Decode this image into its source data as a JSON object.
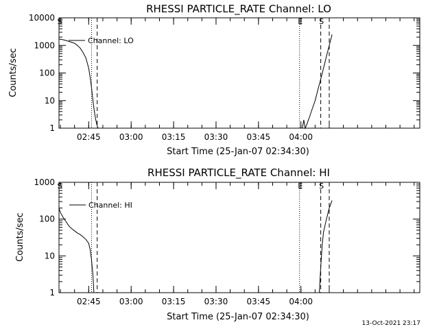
{
  "footer": {
    "timestamp": "13-Oct-2021 23:17"
  },
  "chart_data": [
    {
      "type": "line",
      "title": "RHESSI PARTICLE_RATE Channel: LO",
      "xlabel": "Start Time (25-Jan-07 02:34:30)",
      "ylabel": "Counts/sec",
      "yscale": "log",
      "xlim": [
        "02:34:30",
        "04:42:00"
      ],
      "ylim": [
        1,
        10000
      ],
      "x_ticks": [
        "02:45",
        "03:00",
        "03:15",
        "03:30",
        "03:45",
        "04:00"
      ],
      "y_ticks": [
        "1",
        "10",
        "100",
        "1000",
        "10000"
      ],
      "legend": "Channel: LO",
      "legend_position": "top-left",
      "markers": [
        {
          "label": "S",
          "time": "02:34:30",
          "style": "dotted"
        },
        {
          "label": "",
          "time": "02:46:00",
          "style": "dotted"
        },
        {
          "label": "",
          "time": "02:48:00",
          "style": "dashed"
        },
        {
          "label": "E",
          "time": "03:59:30",
          "style": "dotted"
        },
        {
          "label": "S",
          "time": "04:07:00",
          "style": "dashed"
        },
        {
          "label": "",
          "time": "04:10:00",
          "style": "dashed"
        }
      ],
      "series": [
        {
          "name": "Channel: LO",
          "x": [
            "02:34:30",
            "02:36:00",
            "02:38:00",
            "02:40:00",
            "02:41:00",
            "02:42:00",
            "02:43:00",
            "02:44:00",
            "02:45:00",
            "02:45:30",
            "02:46:00",
            "02:46:30",
            "02:47:00",
            "02:47:30",
            "02:48:00",
            "02:48:20",
            "04:00:30",
            "04:01:00",
            "04:01:30",
            "04:02:00",
            "04:02:30",
            "04:03:00",
            "04:04:00",
            "04:05:00",
            "04:06:00",
            "04:07:00",
            "04:08:00",
            "04:09:00",
            "04:10:00",
            "04:11:00"
          ],
          "y": [
            1700,
            1600,
            1400,
            1200,
            1000,
            800,
            550,
            350,
            150,
            70,
            30,
            10,
            4,
            2,
            1.2,
            1,
            1,
            2,
            1,
            1.3,
            1.8,
            2.5,
            5,
            10,
            25,
            60,
            150,
            400,
            1000,
            2500
          ]
        }
      ]
    },
    {
      "type": "line",
      "title": "RHESSI PARTICLE_RATE Channel: HI",
      "xlabel": "Start Time (25-Jan-07 02:34:30)",
      "ylabel": "Counts/sec",
      "yscale": "log",
      "xlim": [
        "02:34:30",
        "04:42:00"
      ],
      "ylim": [
        1,
        1000
      ],
      "x_ticks": [
        "02:45",
        "03:00",
        "03:15",
        "03:30",
        "03:45",
        "04:00"
      ],
      "y_ticks": [
        "1",
        "10",
        "100",
        "1000"
      ],
      "legend": "Channel: HI",
      "legend_position": "top-left",
      "markers": [
        {
          "label": "S",
          "time": "02:34:30",
          "style": "dotted"
        },
        {
          "label": "",
          "time": "02:46:00",
          "style": "dotted"
        },
        {
          "label": "",
          "time": "02:48:00",
          "style": "dashed"
        },
        {
          "label": "E",
          "time": "03:59:30",
          "style": "dotted"
        },
        {
          "label": "S",
          "time": "04:07:00",
          "style": "dashed"
        },
        {
          "label": "",
          "time": "04:10:00",
          "style": "dashed"
        }
      ],
      "series": [
        {
          "name": "Channel: HI",
          "x": [
            "02:34:30",
            "02:35:00",
            "02:36:00",
            "02:37:00",
            "02:38:00",
            "02:39:00",
            "02:40:00",
            "02:41:00",
            "02:42:00",
            "02:43:00",
            "02:44:00",
            "02:45:00",
            "02:45:30",
            "02:46:00",
            "02:46:30",
            "02:46:50",
            "04:06:30",
            "04:07:00",
            "04:07:30",
            "04:08:00",
            "04:09:00",
            "04:10:00",
            "04:11:00"
          ],
          "y": [
            200,
            150,
            110,
            85,
            65,
            55,
            48,
            42,
            38,
            33,
            28,
            22,
            15,
            8,
            3,
            1,
            1,
            5,
            20,
            45,
            100,
            200,
            320
          ]
        }
      ]
    }
  ]
}
